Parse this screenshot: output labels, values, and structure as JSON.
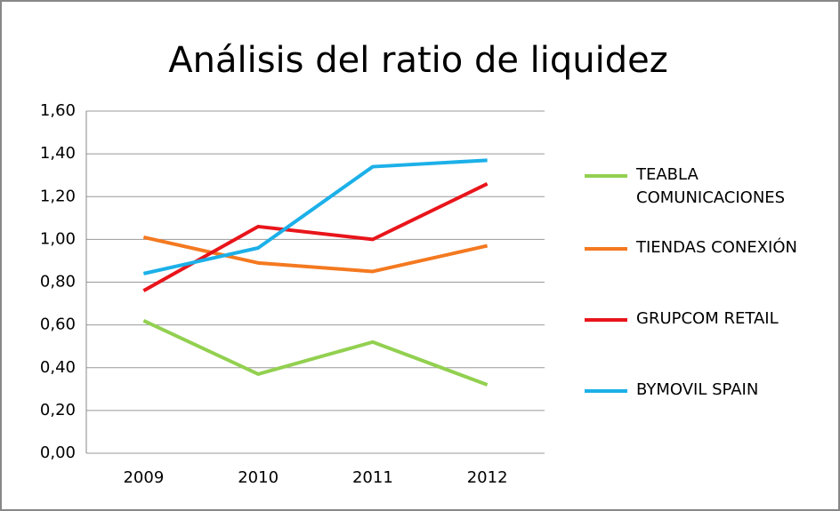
{
  "chart_data": {
    "type": "line",
    "title": "Análisis del ratio de liquidez",
    "categories": [
      "2009",
      "2010",
      "2011",
      "2012"
    ],
    "series": [
      {
        "name": "TEABLA COMUNICACIONES",
        "color": "#92d050",
        "values": [
          0.62,
          0.37,
          0.52,
          0.32
        ]
      },
      {
        "name": "TIENDAS CONEXIÓN",
        "color": "#f47920",
        "values": [
          1.01,
          0.89,
          0.85,
          0.97
        ]
      },
      {
        "name": "GRUPCOM RETAIL",
        "color": "#e8151b",
        "values": [
          0.76,
          1.06,
          1.0,
          1.26
        ]
      },
      {
        "name": "BYMOVIL SPAIN",
        "color": "#1cb0e8",
        "values": [
          0.84,
          0.96,
          1.34,
          1.37
        ]
      }
    ],
    "ylim": [
      0,
      1.6
    ],
    "yticks": [
      {
        "value": 0,
        "label": "0,00"
      },
      {
        "value": 0.2,
        "label": "0,20"
      },
      {
        "value": 0.4,
        "label": "0,40"
      },
      {
        "value": 0.6,
        "label": "0,60"
      },
      {
        "value": 0.8,
        "label": "0,80"
      },
      {
        "value": 1.0,
        "label": "1,00"
      },
      {
        "value": 1.2,
        "label": "1,20"
      },
      {
        "value": 1.4,
        "label": "1,40"
      },
      {
        "value": 1.6,
        "label": "1,60"
      }
    ],
    "grid": true,
    "legend": "right"
  }
}
